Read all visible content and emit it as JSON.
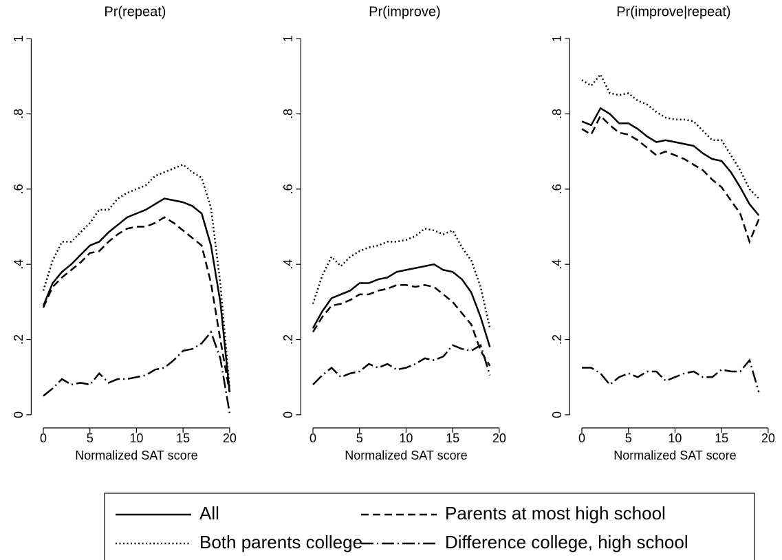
{
  "chart_data": [
    {
      "type": "line",
      "title": "Pr(repeat)",
      "xlabel": "Normalized SAT score",
      "x": [
        0,
        1,
        2,
        3,
        4,
        5,
        6,
        7,
        8,
        9,
        10,
        11,
        12,
        13,
        14,
        15,
        16,
        17,
        18,
        19,
        20
      ],
      "xlim": [
        -1.3,
        21
      ],
      "ylim": [
        -0.035,
        1.03
      ],
      "xticks": [
        0,
        5,
        10,
        15,
        20
      ],
      "yticks": [
        0,
        {
          "value": 0.2,
          "label": ".2"
        },
        {
          "value": 0.4,
          "label": ".4"
        },
        {
          "value": 0.6,
          "label": ".6"
        },
        {
          "value": 0.8,
          "label": ".8"
        },
        1
      ],
      "legend": "bottom",
      "series": [
        {
          "name": "All",
          "color": "#000000",
          "style": "solid",
          "values": [
            0.29,
            0.35,
            0.38,
            0.4,
            0.425,
            0.45,
            0.46,
            0.485,
            0.505,
            0.525,
            0.535,
            0.545,
            0.56,
            0.575,
            0.57,
            0.565,
            0.555,
            0.535,
            0.45,
            0.3,
            0.06
          ]
        },
        {
          "name": "Both parents college",
          "color": "#000000",
          "style": "dotted",
          "values": [
            0.33,
            0.41,
            0.46,
            0.46,
            0.485,
            0.51,
            0.545,
            0.545,
            0.575,
            0.59,
            0.6,
            0.61,
            0.635,
            0.645,
            0.655,
            0.665,
            0.645,
            0.63,
            0.55,
            0.35,
            0.07
          ]
        },
        {
          "name": "Parents at most high school",
          "color": "#000000",
          "style": "dashed",
          "values": [
            0.285,
            0.34,
            0.365,
            0.385,
            0.405,
            0.43,
            0.435,
            0.46,
            0.48,
            0.495,
            0.5,
            0.5,
            0.51,
            0.525,
            0.51,
            0.49,
            0.47,
            0.45,
            0.35,
            0.2,
            0.06
          ]
        },
        {
          "name": "Difference college, high school",
          "color": "#000000",
          "style": "dashdot",
          "values": [
            0.05,
            0.07,
            0.095,
            0.08,
            0.085,
            0.08,
            0.11,
            0.085,
            0.095,
            0.095,
            0.1,
            0.105,
            0.12,
            0.125,
            0.145,
            0.17,
            0.175,
            0.19,
            0.22,
            0.15,
            0.005
          ]
        }
      ]
    },
    {
      "type": "line",
      "title": "Pr(improve)",
      "xlabel": "Normalized SAT score",
      "x": [
        0,
        1,
        2,
        3,
        4,
        5,
        6,
        7,
        8,
        9,
        10,
        11,
        12,
        13,
        14,
        15,
        16,
        17,
        18,
        19
      ],
      "xlim": [
        -1.3,
        21
      ],
      "ylim": [
        -0.035,
        1.03
      ],
      "xticks": [
        0,
        5,
        10,
        15,
        20
      ],
      "yticks": [
        0,
        {
          "value": 0.2,
          "label": ".2"
        },
        {
          "value": 0.4,
          "label": ".4"
        },
        {
          "value": 0.6,
          "label": ".6"
        },
        {
          "value": 0.8,
          "label": ".8"
        },
        1
      ],
      "series": [
        {
          "name": "All",
          "color": "#000000",
          "style": "solid",
          "values": [
            0.23,
            0.275,
            0.31,
            0.32,
            0.33,
            0.35,
            0.35,
            0.36,
            0.365,
            0.38,
            0.385,
            0.39,
            0.395,
            0.4,
            0.385,
            0.38,
            0.36,
            0.325,
            0.26,
            0.18
          ]
        },
        {
          "name": "Both parents college",
          "color": "#000000",
          "style": "dotted",
          "values": [
            0.295,
            0.37,
            0.42,
            0.395,
            0.42,
            0.435,
            0.445,
            0.45,
            0.46,
            0.46,
            0.465,
            0.475,
            0.495,
            0.49,
            0.48,
            0.49,
            0.445,
            0.41,
            0.34,
            0.23
          ]
        },
        {
          "name": "Parents at most high school",
          "color": "#000000",
          "style": "dashed",
          "values": [
            0.22,
            0.26,
            0.29,
            0.295,
            0.305,
            0.32,
            0.32,
            0.33,
            0.335,
            0.345,
            0.345,
            0.34,
            0.345,
            0.34,
            0.32,
            0.3,
            0.27,
            0.24,
            0.17,
            0.13
          ]
        },
        {
          "name": "Difference college, high school",
          "color": "#000000",
          "style": "dashdot",
          "values": [
            0.08,
            0.105,
            0.125,
            0.1,
            0.11,
            0.115,
            0.135,
            0.125,
            0.135,
            0.12,
            0.125,
            0.135,
            0.15,
            0.145,
            0.155,
            0.185,
            0.175,
            0.17,
            0.185,
            0.105
          ]
        }
      ]
    },
    {
      "type": "line",
      "title": "Pr(improve|repeat)",
      "xlabel": "Normalized SAT score",
      "x": [
        0,
        1,
        2,
        3,
        4,
        5,
        6,
        7,
        8,
        9,
        10,
        11,
        12,
        13,
        14,
        15,
        16,
        17,
        18,
        19
      ],
      "xlim": [
        -1.3,
        21
      ],
      "ylim": [
        -0.035,
        1.03
      ],
      "xticks": [
        0,
        5,
        10,
        15,
        20
      ],
      "yticks": [
        0,
        {
          "value": 0.2,
          "label": ".2"
        },
        {
          "value": 0.4,
          "label": ".4"
        },
        {
          "value": 0.6,
          "label": ".6"
        },
        {
          "value": 0.8,
          "label": ".8"
        },
        1
      ],
      "series": [
        {
          "name": "All",
          "color": "#000000",
          "style": "solid",
          "values": [
            0.78,
            0.77,
            0.815,
            0.8,
            0.775,
            0.775,
            0.76,
            0.74,
            0.725,
            0.73,
            0.725,
            0.72,
            0.715,
            0.695,
            0.68,
            0.675,
            0.645,
            0.605,
            0.56,
            0.53
          ]
        },
        {
          "name": "Both parents college",
          "color": "#000000",
          "style": "dotted",
          "values": [
            0.89,
            0.875,
            0.905,
            0.855,
            0.85,
            0.855,
            0.835,
            0.825,
            0.805,
            0.79,
            0.785,
            0.785,
            0.78,
            0.755,
            0.73,
            0.73,
            0.69,
            0.65,
            0.6,
            0.575
          ]
        },
        {
          "name": "Parents at most high school",
          "color": "#000000",
          "style": "dashed",
          "values": [
            0.76,
            0.745,
            0.795,
            0.77,
            0.75,
            0.745,
            0.73,
            0.71,
            0.69,
            0.7,
            0.69,
            0.68,
            0.665,
            0.65,
            0.625,
            0.605,
            0.57,
            0.535,
            0.46,
            0.52
          ]
        },
        {
          "name": "Difference college, high school",
          "color": "#000000",
          "style": "dashdot",
          "values": [
            0.125,
            0.125,
            0.11,
            0.08,
            0.1,
            0.11,
            0.1,
            0.115,
            0.115,
            0.09,
            0.1,
            0.11,
            0.115,
            0.1,
            0.1,
            0.12,
            0.115,
            0.115,
            0.145,
            0.06
          ]
        }
      ]
    }
  ]
}
